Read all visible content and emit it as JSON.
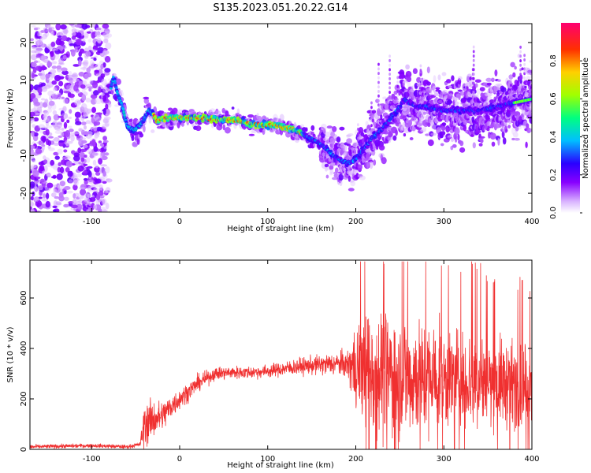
{
  "title": "S135.2023.051.20.22.G14",
  "colors": {
    "snr_line": "#f03030",
    "spectrogram_colormap": [
      "#ffffff",
      "#e6c8ff",
      "#8800ff",
      "#2a00ff",
      "#00c8ff",
      "#00ff60",
      "#c8ff00",
      "#ffb000",
      "#ff2020",
      "#ff0066"
    ]
  },
  "chart_data": [
    {
      "id": "spectrogram",
      "type": "heatmap",
      "title": "",
      "xlabel": "Height of straight line (km)",
      "ylabel": "Frequency (Hz)",
      "xlim": [
        -170,
        400
      ],
      "ylim": [
        -25,
        25
      ],
      "xticks": [
        -100,
        0,
        100,
        200,
        300,
        400
      ],
      "yticks": [
        -20,
        -10,
        0,
        10,
        20
      ],
      "colorbar": {
        "label": "Normalized spectral amplitude",
        "range": [
          0.0,
          1.0
        ],
        "ticks": [
          0.0,
          0.2,
          0.4,
          0.6,
          0.8
        ]
      },
      "ridge": {
        "x": [
          -78,
          -75,
          -70,
          -65,
          -60,
          -55,
          -50,
          -45,
          -40,
          -35,
          -30,
          -25,
          -20,
          -10,
          0,
          20,
          40,
          60,
          80,
          100,
          110,
          120,
          130,
          140,
          150,
          160,
          170,
          180,
          190,
          200,
          210,
          220,
          230,
          240,
          250,
          255,
          260,
          270,
          280,
          300,
          320,
          340,
          360,
          380,
          400
        ],
        "y": [
          8,
          11,
          6,
          3,
          -2,
          -3,
          -3,
          -2,
          0,
          2,
          1,
          -1,
          0,
          0,
          0,
          0,
          -0.5,
          -0.5,
          -1.5,
          -2,
          -2,
          -2.5,
          -3,
          -4.5,
          -5.5,
          -7,
          -9,
          -11,
          -12,
          -11,
          -8,
          -5,
          -3,
          0,
          3,
          5,
          4,
          3,
          3,
          2,
          2,
          2,
          3,
          4,
          5
        ]
      },
      "noise_band_x": [
        -170,
        -80
      ]
    },
    {
      "id": "snr",
      "type": "line",
      "title": "",
      "xlabel": "Height of straight line (km)",
      "ylabel": "SNR (10 * v/v)",
      "xlim": [
        -170,
        400
      ],
      "ylim": [
        0,
        750
      ],
      "xticks": [
        -100,
        0,
        100,
        200,
        300,
        400
      ],
      "yticks": [
        0,
        200,
        400,
        600
      ],
      "mean_trend": {
        "x": [
          -170,
          -100,
          -60,
          -45,
          -40,
          -30,
          -20,
          -10,
          0,
          20,
          40,
          60,
          80,
          100,
          120,
          140,
          160,
          180,
          200,
          220,
          240,
          260,
          280,
          300,
          320,
          340,
          360,
          380,
          400
        ],
        "y": [
          10,
          15,
          10,
          20,
          100,
          120,
          130,
          170,
          200,
          260,
          300,
          305,
          305,
          310,
          320,
          330,
          335,
          340,
          330,
          310,
          300,
          290,
          285,
          280,
          275,
          270,
          265,
          260,
          250
        ]
      },
      "spread": {
        "x": [
          -170,
          -45,
          -40,
          -20,
          0,
          40,
          100,
          150,
          190,
          200,
          230,
          260,
          300,
          350,
          400
        ],
        "y": [
          8,
          8,
          90,
          60,
          40,
          25,
          25,
          35,
          50,
          180,
          260,
          240,
          200,
          180,
          150
        ]
      },
      "peak_max": {
        "x": 232,
        "y": 735
      }
    }
  ]
}
